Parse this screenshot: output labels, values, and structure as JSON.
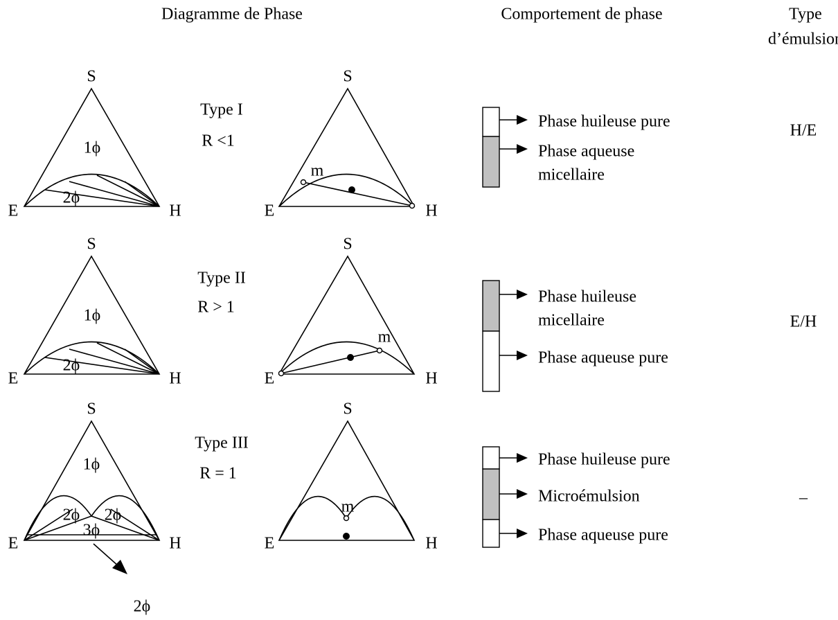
{
  "header": {
    "diagram": "Diagramme de Phase",
    "behavior": "Comportement de phase",
    "emulsion": [
      "Type",
      "d’émulsion"
    ]
  },
  "vertices": {
    "top": "S",
    "left": "E",
    "right": "H"
  },
  "rows": [
    {
      "type": "Type I",
      "ratio": "R <1",
      "regions": [
        "1ϕ",
        "2ϕ"
      ],
      "point": "m",
      "phases": [
        {
          "label": [
            "Phase huileuse pure"
          ],
          "shaded": false
        },
        {
          "label": [
            "Phase aqueuse",
            "micellaire"
          ],
          "shaded": true
        }
      ],
      "emulsion": "H/E"
    },
    {
      "type": "Type II",
      "ratio": "R > 1",
      "regions": [
        "1ϕ",
        "2ϕ"
      ],
      "point": "m",
      "phases": [
        {
          "label": [
            "Phase huileuse",
            "micellaire"
          ],
          "shaded": true
        },
        {
          "label": [
            "Phase aqueuse pure"
          ],
          "shaded": false
        }
      ],
      "emulsion": "E/H"
    },
    {
      "type": "Type III",
      "ratio": "R = 1",
      "regions": [
        "1ϕ",
        "2ϕ",
        "2ϕ",
        "3ϕ"
      ],
      "arrow_label": "2ϕ",
      "point": "m",
      "phases": [
        {
          "label": [
            "Phase huileuse pure"
          ],
          "shaded": false
        },
        {
          "label": [
            "Microémulsion"
          ],
          "shaded": true
        },
        {
          "label": [
            "Phase aqueuse pure"
          ],
          "shaded": false
        }
      ],
      "emulsion": "–"
    }
  ]
}
